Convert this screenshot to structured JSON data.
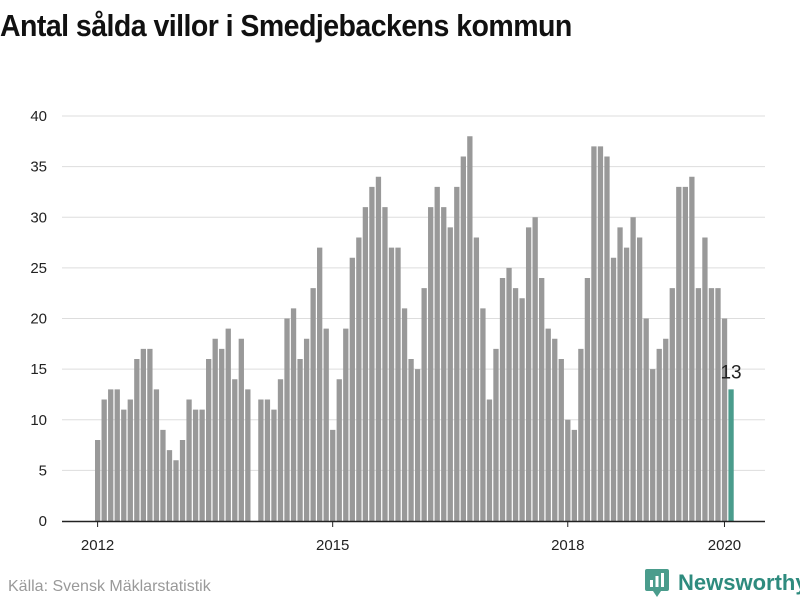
{
  "title": "Antal sålda villor i Smedjebackens kommun",
  "source": "Källa: Svensk Mäklarstatistik",
  "brand": {
    "name": "Newsworthy",
    "icon": "bar-chart-pin-icon",
    "color": "#4a9c8c"
  },
  "colors": {
    "bar": "#999999",
    "highlight": "#4a9c8c",
    "grid": "#dddddd",
    "axis": "#222222"
  },
  "chart_data": {
    "type": "bar",
    "title": "Antal sålda villor i Smedjebackens kommun",
    "xlabel": "",
    "ylabel": "",
    "ylim": [
      0,
      40
    ],
    "yticks": [
      0,
      5,
      10,
      15,
      20,
      25,
      30,
      35,
      40
    ],
    "xticks": [
      {
        "label": "2012",
        "index": 0
      },
      {
        "label": "2015",
        "index": 36
      },
      {
        "label": "2018",
        "index": 72
      },
      {
        "label": "2020",
        "index": 96
      }
    ],
    "grid": true,
    "highlight_index": 97,
    "highlight_label": "13",
    "categories": [
      "2012-01",
      "2012-02",
      "2012-03",
      "2012-04",
      "2012-05",
      "2012-06",
      "2012-07",
      "2012-08",
      "2012-09",
      "2012-10",
      "2012-11",
      "2012-12",
      "2013-01",
      "2013-02",
      "2013-03",
      "2013-04",
      "2013-05",
      "2013-06",
      "2013-07",
      "2013-08",
      "2013-09",
      "2013-10",
      "2013-11",
      "2013-12",
      "2014-01",
      "2014-02",
      "2014-03",
      "2014-04",
      "2014-05",
      "2014-06",
      "2014-07",
      "2014-08",
      "2014-09",
      "2014-10",
      "2014-11",
      "2014-12",
      "2015-01",
      "2015-02",
      "2015-03",
      "2015-04",
      "2015-05",
      "2015-06",
      "2015-07",
      "2015-08",
      "2015-09",
      "2015-10",
      "2015-11",
      "2015-12",
      "2016-01",
      "2016-02",
      "2016-03",
      "2016-04",
      "2016-05",
      "2016-06",
      "2016-07",
      "2016-08",
      "2016-09",
      "2016-10",
      "2016-11",
      "2016-12",
      "2017-01",
      "2017-02",
      "2017-03",
      "2017-04",
      "2017-05",
      "2017-06",
      "2017-07",
      "2017-08",
      "2017-09",
      "2017-10",
      "2017-11",
      "2017-12",
      "2018-01",
      "2018-02",
      "2018-03",
      "2018-04",
      "2018-05",
      "2018-06",
      "2018-07",
      "2018-08",
      "2018-09",
      "2018-10",
      "2018-11",
      "2018-12",
      "2019-01",
      "2019-02",
      "2019-03",
      "2019-04",
      "2019-05",
      "2019-06",
      "2019-07",
      "2019-08",
      "2019-09",
      "2019-10",
      "2019-11",
      "2019-12",
      "2020-01",
      "2020-02"
    ],
    "values": [
      8,
      12,
      13,
      13,
      11,
      12,
      16,
      17,
      17,
      13,
      9,
      7,
      6,
      8,
      12,
      11,
      11,
      16,
      18,
      17,
      19,
      14,
      18,
      13,
      0,
      12,
      12,
      11,
      14,
      20,
      21,
      16,
      18,
      23,
      27,
      19,
      9,
      14,
      19,
      26,
      28,
      31,
      33,
      34,
      31,
      27,
      27,
      21,
      16,
      15,
      23,
      31,
      33,
      31,
      29,
      33,
      36,
      38,
      28,
      21,
      12,
      17,
      24,
      25,
      23,
      22,
      29,
      30,
      24,
      19,
      18,
      16,
      10,
      9,
      17,
      24,
      37,
      37,
      36,
      26,
      29,
      27,
      30,
      28,
      20,
      15,
      17,
      18,
      23,
      33,
      33,
      34,
      23,
      28,
      23,
      23,
      20,
      13
    ]
  }
}
